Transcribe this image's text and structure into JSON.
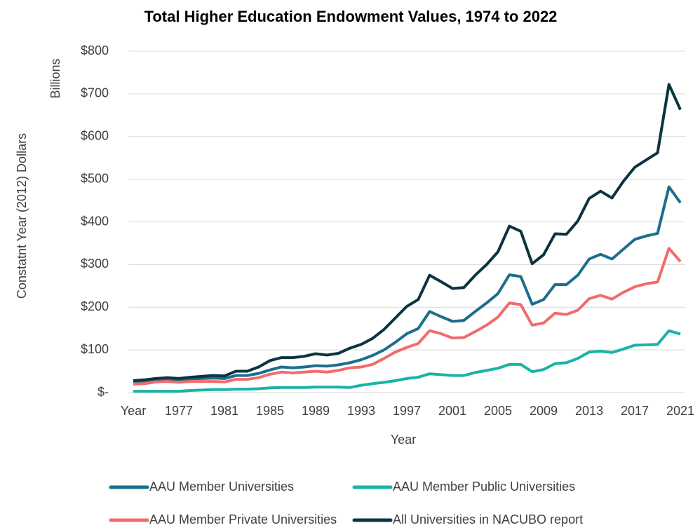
{
  "chart_data": {
    "type": "line",
    "title": "Total Higher Education Endowment Values, 1974 to 2022",
    "x_label": "Year",
    "y_label": "Constatnt Year (2012)  Dollars",
    "y_unit_label": "Billions",
    "categories": [
      "Year",
      null,
      null,
      null,
      "1977",
      null,
      null,
      null,
      "1981",
      null,
      null,
      null,
      "1985",
      null,
      null,
      null,
      "1989",
      null,
      null,
      null,
      "1993",
      null,
      null,
      null,
      "1997",
      null,
      null,
      null,
      "2001",
      null,
      null,
      null,
      "2005",
      null,
      null,
      null,
      "2009",
      null,
      null,
      null,
      "2013",
      null,
      null,
      null,
      "2017",
      null,
      null,
      null,
      "2021"
    ],
    "ylim": [
      0,
      800
    ],
    "yticks": [
      {
        "value": 0,
        "label": "$-"
      },
      {
        "value": 100,
        "label": "$100"
      },
      {
        "value": 200,
        "label": "$200"
      },
      {
        "value": 300,
        "label": "$300"
      },
      {
        "value": 400,
        "label": "$400"
      },
      {
        "value": 500,
        "label": "$500"
      },
      {
        "value": 600,
        "label": "$600"
      },
      {
        "value": 700,
        "label": "$700"
      },
      {
        "value": 800,
        "label": "$800"
      }
    ],
    "grid": true,
    "legend": "bottom",
    "series": [
      {
        "name": "AAU Member Universities",
        "color": "#1d6e8c",
        "values": [
          25,
          27,
          30,
          31,
          30,
          32,
          33,
          34,
          33,
          40,
          40,
          45,
          53,
          60,
          58,
          60,
          63,
          62,
          65,
          70,
          77,
          87,
          100,
          118,
          138,
          150,
          190,
          178,
          167,
          169,
          190,
          210,
          232,
          276,
          272,
          207,
          218,
          253,
          253,
          275,
          313,
          324,
          313,
          336,
          359,
          367,
          373,
          482,
          445
        ]
      },
      {
        "name": "AAU Member Public Universities",
        "color": "#1ab3a6",
        "values": [
          3,
          3,
          3,
          3,
          3,
          5,
          6,
          7,
          7,
          8,
          8,
          9,
          11,
          12,
          12,
          12,
          13,
          13,
          13,
          12,
          17,
          21,
          24,
          28,
          33,
          36,
          44,
          42,
          40,
          40,
          47,
          52,
          57,
          66,
          66,
          49,
          54,
          68,
          70,
          80,
          95,
          97,
          94,
          102,
          111,
          112,
          113,
          145,
          137
        ]
      },
      {
        "name": "AAU Member Private Universities",
        "color": "#f26b6b",
        "values": [
          20,
          21,
          25,
          26,
          24,
          26,
          26,
          26,
          25,
          31,
          31,
          35,
          43,
          48,
          46,
          48,
          50,
          48,
          52,
          58,
          60,
          66,
          80,
          95,
          106,
          115,
          145,
          138,
          128,
          129,
          143,
          158,
          177,
          210,
          206,
          158,
          163,
          186,
          183,
          193,
          220,
          228,
          219,
          235,
          248,
          255,
          259,
          338,
          307
        ]
      },
      {
        "name": "All Universities in NACUBO report",
        "color": "#0b3440",
        "values": [
          28,
          30,
          33,
          35,
          33,
          36,
          38,
          40,
          39,
          50,
          50,
          60,
          75,
          82,
          82,
          85,
          91,
          88,
          92,
          104,
          113,
          127,
          148,
          175,
          202,
          218,
          275,
          260,
          244,
          246,
          275,
          300,
          330,
          390,
          378,
          302,
          323,
          372,
          371,
          402,
          455,
          472,
          456,
          495,
          528,
          545,
          562,
          722,
          663
        ]
      }
    ]
  }
}
